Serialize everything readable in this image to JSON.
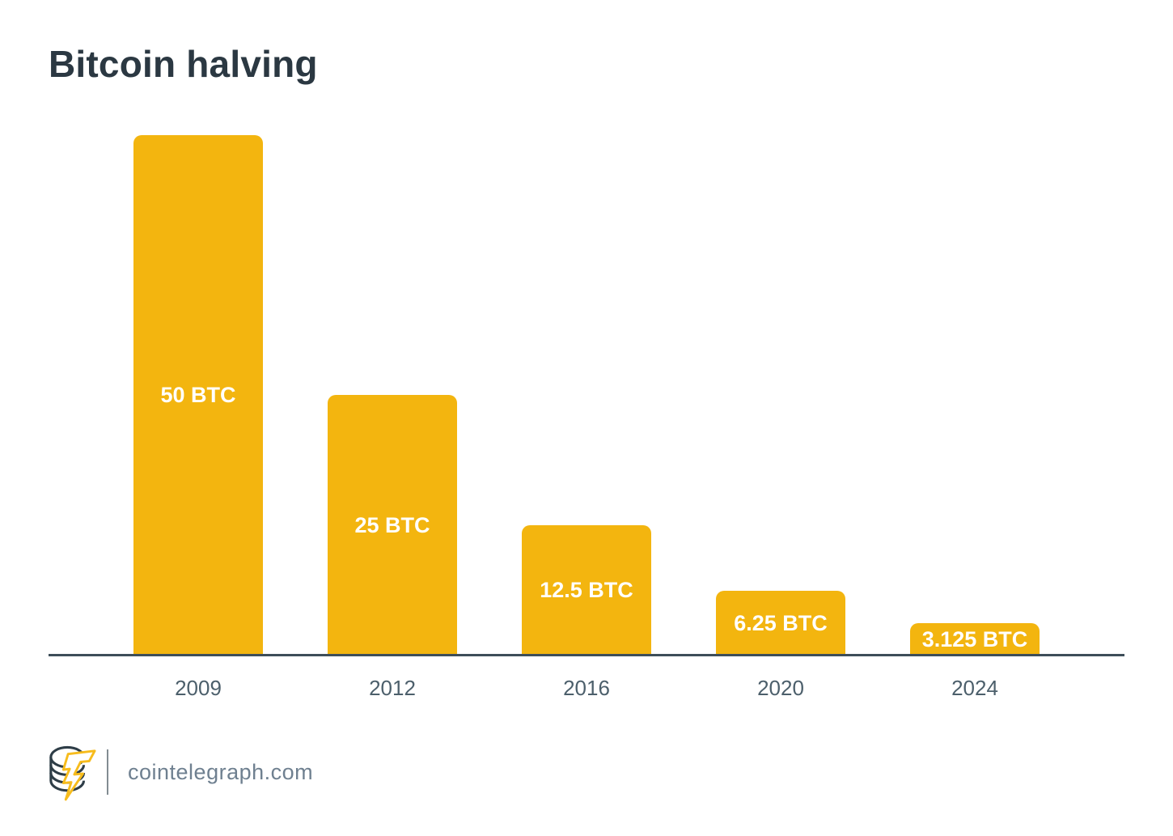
{
  "chart": {
    "title": "Bitcoin halving"
  },
  "chart_data": {
    "type": "bar",
    "title": "Bitcoin halving",
    "categories": [
      "2009",
      "2012",
      "2016",
      "2020",
      "2024"
    ],
    "values": [
      50,
      25,
      12.5,
      6.25,
      3.125
    ],
    "bar_labels": [
      "50 BTC",
      "25 BTC",
      "12.5 BTC",
      "6.25 BTC",
      "3.125 BTC"
    ],
    "unit": "BTC",
    "xlabel": "",
    "ylabel": "",
    "ylim": [
      0,
      50
    ],
    "grid": false,
    "legend": false,
    "colors": {
      "bar": "#f3b50f",
      "bar_label_text": "#ffffff",
      "axis_line": "#3e4e59",
      "tick_label": "#4c5f6b",
      "title_text": "#2b3842"
    }
  },
  "footer": {
    "site": "cointelegraph.com",
    "logo_name": "cointelegraph-coin-lightning-logo",
    "logo_colors": {
      "coin_outline": "#2e3d47",
      "bolt_outline": "#f7bc1c"
    }
  }
}
